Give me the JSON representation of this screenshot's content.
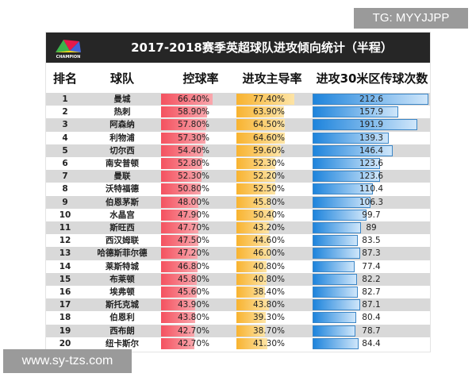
{
  "watermarks": {
    "top": "TG: MYYJJPP",
    "bottom": "www.sy-tzs.com"
  },
  "logo_text": "CHAMPION",
  "title": "2017-2018赛季英超球队进攻倾向统计（半程）",
  "headers": {
    "rank": "排名",
    "team": "球队",
    "possession": "控球率",
    "dominance": "进攻主导率",
    "passes": "进攻30米区传球次数"
  },
  "colors": {
    "possession": "#f4515f",
    "dominance": "#f8b330",
    "passes": "#1e84dc",
    "title_bg": "#262626"
  },
  "rows": [
    {
      "rank": "1",
      "team": "曼城",
      "possession": "66.40%",
      "dominance": "77.40%",
      "passes": "212.6"
    },
    {
      "rank": "2",
      "team": "热刺",
      "possession": "58.90%",
      "dominance": "63.90%",
      "passes": "157.9"
    },
    {
      "rank": "3",
      "team": "阿森纳",
      "possession": "57.80%",
      "dominance": "64.50%",
      "passes": "191.9"
    },
    {
      "rank": "4",
      "team": "利物浦",
      "possession": "57.30%",
      "dominance": "64.60%",
      "passes": "139.3"
    },
    {
      "rank": "5",
      "team": "切尔西",
      "possession": "54.40%",
      "dominance": "59.60%",
      "passes": "146.4"
    },
    {
      "rank": "6",
      "team": "南安普顿",
      "possession": "52.80%",
      "dominance": "52.30%",
      "passes": "123.6"
    },
    {
      "rank": "7",
      "team": "曼联",
      "possession": "52.30%",
      "dominance": "52.20%",
      "passes": "123.6"
    },
    {
      "rank": "8",
      "team": "沃特福德",
      "possession": "50.80%",
      "dominance": "52.50%",
      "passes": "110.4"
    },
    {
      "rank": "9",
      "team": "伯恩茅斯",
      "possession": "48.00%",
      "dominance": "45.80%",
      "passes": "106.3"
    },
    {
      "rank": "10",
      "team": "水晶宫",
      "possession": "47.90%",
      "dominance": "50.40%",
      "passes": "99.7"
    },
    {
      "rank": "11",
      "team": "斯旺西",
      "possession": "47.70%",
      "dominance": "43.20%",
      "passes": "89"
    },
    {
      "rank": "12",
      "team": "西汉姆联",
      "possession": "47.50%",
      "dominance": "44.60%",
      "passes": "83.5"
    },
    {
      "rank": "13",
      "team": "哈德斯菲尔德",
      "possession": "47.20%",
      "dominance": "46.00%",
      "passes": "87.3"
    },
    {
      "rank": "14",
      "team": "莱斯特城",
      "possession": "46.80%",
      "dominance": "40.80%",
      "passes": "77.4"
    },
    {
      "rank": "15",
      "team": "布莱顿",
      "possession": "45.80%",
      "dominance": "40.80%",
      "passes": "82.2"
    },
    {
      "rank": "16",
      "team": "埃弗顿",
      "possession": "45.60%",
      "dominance": "38.40%",
      "passes": "82.7"
    },
    {
      "rank": "17",
      "team": "斯托克城",
      "possession": "43.90%",
      "dominance": "43.80%",
      "passes": "87.1"
    },
    {
      "rank": "18",
      "team": "伯恩利",
      "possession": "43.80%",
      "dominance": "39.30%",
      "passes": "80.4"
    },
    {
      "rank": "19",
      "team": "西布朗",
      "possession": "42.70%",
      "dominance": "38.70%",
      "passes": "78.7"
    },
    {
      "rank": "20",
      "team": "纽卡斯尔",
      "possession": "42.70%",
      "dominance": "41.30%",
      "passes": "84.4"
    }
  ]
}
